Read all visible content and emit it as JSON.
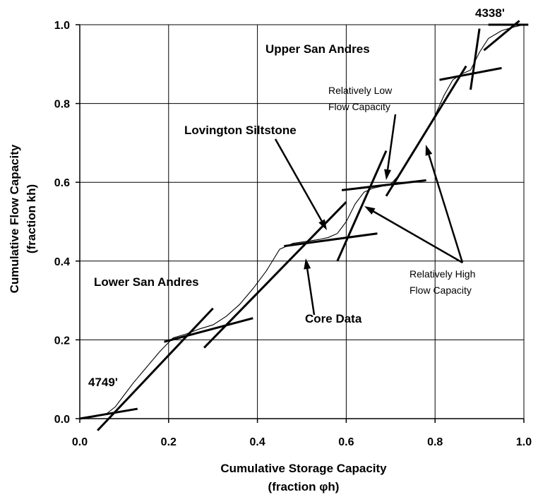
{
  "chart_data": {
    "type": "line",
    "title": "",
    "xlabel": "Cumulative Storage Capacity",
    "xlabel_unit": "(fraction φh)",
    "ylabel": "Cumulative Flow Capacity",
    "ylabel_unit": "(fraction kh)",
    "xlim": [
      0.0,
      1.0
    ],
    "ylim": [
      0.0,
      1.0
    ],
    "grid": true,
    "x_ticks": [
      "0.0",
      "0.2",
      "0.4",
      "0.6",
      "0.8",
      "1.0"
    ],
    "y_ticks": [
      "0.0",
      "0.2",
      "0.4",
      "0.6",
      "0.8",
      "1.0"
    ],
    "series": [
      {
        "x": [
          0.0,
          0.03,
          0.06,
          0.08,
          0.1,
          0.12,
          0.15,
          0.18,
          0.21,
          0.24,
          0.27,
          0.3,
          0.33,
          0.36,
          0.39,
          0.42,
          0.45,
          0.48,
          0.51,
          0.54,
          0.56,
          0.58,
          0.6,
          0.62,
          0.64,
          0.66,
          0.68,
          0.7,
          0.72,
          0.74,
          0.76,
          0.78,
          0.8,
          0.82,
          0.84,
          0.86,
          0.88,
          0.9,
          0.92,
          0.95,
          0.98,
          1.0
        ],
        "y": [
          0.0,
          0.004,
          0.012,
          0.03,
          0.06,
          0.09,
          0.13,
          0.17,
          0.205,
          0.215,
          0.228,
          0.238,
          0.26,
          0.29,
          0.33,
          0.375,
          0.43,
          0.445,
          0.45,
          0.455,
          0.46,
          0.47,
          0.5,
          0.545,
          0.575,
          0.585,
          0.59,
          0.595,
          0.62,
          0.66,
          0.69,
          0.73,
          0.77,
          0.82,
          0.86,
          0.875,
          0.885,
          0.93,
          0.965,
          0.985,
          0.995,
          1.0
        ]
      }
    ],
    "fit_lines": [
      {
        "x": [
          0.0,
          0.13
        ],
        "y": [
          0.0,
          0.025
        ]
      },
      {
        "x": [
          0.04,
          0.3
        ],
        "y": [
          -0.03,
          0.28
        ]
      },
      {
        "x": [
          0.19,
          0.39
        ],
        "y": [
          0.195,
          0.255
        ]
      },
      {
        "x": [
          0.28,
          0.6
        ],
        "y": [
          0.18,
          0.55
        ]
      },
      {
        "x": [
          0.46,
          0.67
        ],
        "y": [
          0.438,
          0.47
        ]
      },
      {
        "x": [
          0.58,
          0.69
        ],
        "y": [
          0.4,
          0.68
        ]
      },
      {
        "x": [
          0.59,
          0.78
        ],
        "y": [
          0.58,
          0.605
        ]
      },
      {
        "x": [
          0.69,
          0.87
        ],
        "y": [
          0.565,
          0.895
        ]
      },
      {
        "x": [
          0.81,
          0.95
        ],
        "y": [
          0.86,
          0.89
        ]
      },
      {
        "x": [
          0.88,
          0.9
        ],
        "y": [
          0.835,
          0.99
        ]
      },
      {
        "x": [
          0.91,
          0.99
        ],
        "y": [
          0.935,
          1.01
        ]
      },
      {
        "x": [
          0.92,
          1.01
        ],
        "y": [
          1.0,
          1.0
        ]
      }
    ],
    "annotations": [
      {
        "text": "4338'"
      },
      {
        "text": "Upper San Andres"
      },
      {
        "text": "Relatively Low"
      },
      {
        "text": "Flow Capacity"
      },
      {
        "text": "Lovington Siltstone"
      },
      {
        "text": "Lower San Andres"
      },
      {
        "text": "Relatively High"
      },
      {
        "text": "Flow Capacity"
      },
      {
        "text": "Core Data"
      },
      {
        "text": "4749'"
      }
    ]
  }
}
